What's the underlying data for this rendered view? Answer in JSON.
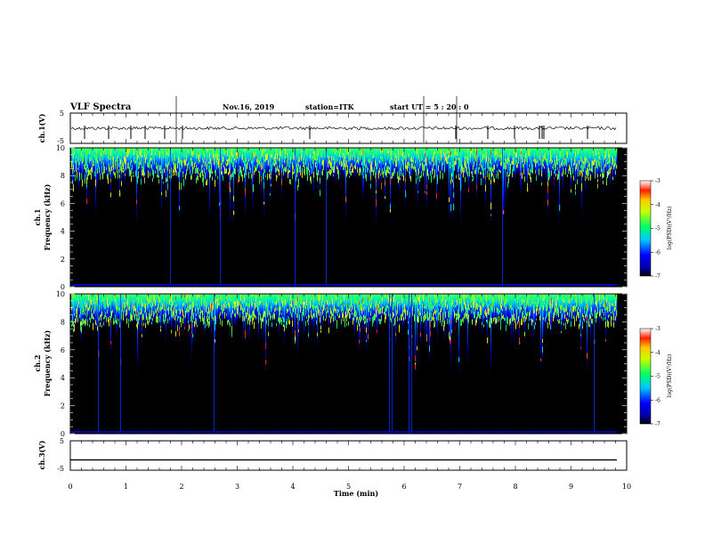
{
  "header": {
    "title": "VLF Spectra",
    "date": "Nov.16, 2019",
    "station": "station=ITK",
    "start": "start  UT  =   5  : 20 : 0"
  },
  "chart_data": {
    "type": "heatmap",
    "x_axis": {
      "label": "Time  (min)",
      "range": [
        0,
        10
      ],
      "ticks": [
        "0",
        "1",
        "2",
        "3",
        "4",
        "5",
        "6",
        "7",
        "8",
        "9",
        "10"
      ]
    },
    "panels": [
      {
        "id": "ch1_waveform",
        "type": "line",
        "ylabel": "ch.1(V)",
        "yticks": [
          "5",
          "-5"
        ],
        "ylim": [
          -5,
          5
        ],
        "baseline": 0,
        "note": "noisy waveform around 0 V with negative spikes"
      },
      {
        "id": "ch1_spectrogram",
        "type": "heatmap",
        "ylabel_top": "ch.1",
        "ylabel": "Frequency  (kHz)",
        "yticks": [
          "0",
          "2",
          "4",
          "6",
          "8",
          "10"
        ],
        "ylim": [
          0,
          10
        ],
        "colorbar": {
          "label": "log(PSD)(V²/Hz)",
          "ticks": [
            "-3",
            "-4",
            "-5",
            "-6",
            "-7"
          ],
          "range": [
            -7,
            -3
          ]
        }
      },
      {
        "id": "ch2_spectrogram",
        "type": "heatmap",
        "ylabel_top": "ch.2",
        "ylabel": "Frequency  (kHz)",
        "yticks": [
          "0",
          "2",
          "4",
          "6",
          "8",
          "10"
        ],
        "ylim": [
          0,
          10
        ],
        "colorbar": {
          "label": "log(PSD)(V²/Hz)",
          "ticks": [
            "-3",
            "-4",
            "-5",
            "-6",
            "-7"
          ],
          "range": [
            -7,
            -3
          ]
        }
      },
      {
        "id": "ch3_waveform",
        "type": "line",
        "ylabel": "ch.3(V)",
        "yticks": [
          "5",
          "-5"
        ],
        "ylim": [
          -5,
          5
        ],
        "baseline": -1.5,
        "note": "flat line near -1.5 V"
      }
    ]
  },
  "colors": {
    "background": "#000000",
    "low": "#0000ff",
    "mid": "#00ff80",
    "high": "#ffff00",
    "peak": "#ff0000"
  }
}
